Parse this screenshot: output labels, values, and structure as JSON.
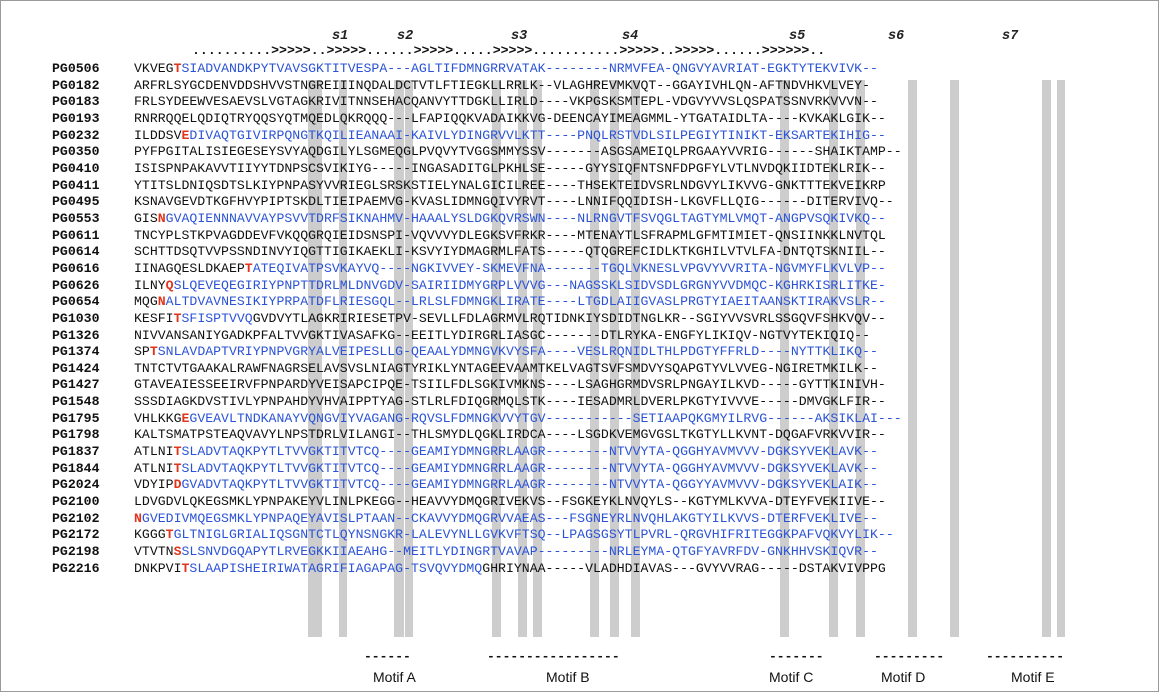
{
  "strands": [
    "s1",
    "s2",
    "s3",
    "s4",
    "s5",
    "s6",
    "s7"
  ],
  "ss_line": "..........>>>>>..>>>>>......>>>>>.....>>>>>...........>>>>>..>>>>>......>>>>>>..",
  "rows": [
    {
      "id": "PG0506",
      "segments": [
        [
          "k",
          "VKVEG"
        ],
        [
          "r",
          "T"
        ],
        [
          "b",
          "SIADVANDKPYTVAVSGKTITVESPA---AGLTIFDMNGRRVATAK--------NRMVFEA-QNGVYAVRIAT-EGKTYTEKVIVK--"
        ]
      ]
    },
    {
      "id": "PG0182",
      "segments": [
        [
          "k",
          "ARFRLSYGCDENVDDSHVVSTNGREIIINQDALDCTVTLFTIEGKLLRRLK--VLAGHREVMKVQT--GGAYIVHLQN-AFTNDVHKVLVEY-"
        ]
      ]
    },
    {
      "id": "PG0183",
      "segments": [
        [
          "k",
          "FRLSYDEEWVESAEVSLVGTAGKRIVITNNSEHACQANVYTTDGKLLIRLD----VKPGSKSMTEPL-VDGVYVVSLQSPATSSNVRKVVVN--"
        ]
      ]
    },
    {
      "id": "PG0193",
      "segments": [
        [
          "k",
          "RNRRQQELQDIQTRYQQSYQTMQEDLQKRQQQ---LFAPIQQKVADAIKKVG-DEENCAYIMEAGMML-YTGATAIDLTA----KVKAKLGIK--"
        ]
      ]
    },
    {
      "id": "PG0232",
      "segments": [
        [
          "k",
          "ILDDSV"
        ],
        [
          "r",
          "E"
        ],
        [
          "b",
          "DIVAQTGIVIRPQNGTKQILIEANAAI-KAIVLYDINGRVVLKTT----PNQLRSTVDLSILPEGIYTINIKT-EKSARTEKIHIG--"
        ]
      ]
    },
    {
      "id": "PG0350",
      "segments": [
        [
          "k",
          "PYFPGITALISIEGESEYSVYAQDGILYLSGMEQGLPVQVYTVGGSMMYSSV-------ASGSAMEIQLPRGAAYVVRIG------SHAIKTAMP--"
        ]
      ]
    },
    {
      "id": "PG0410",
      "segments": [
        [
          "k",
          "ISISPNPAKAVVTIIYYTDNPSCSVIKIYG-----INGASADITGLPKHLSE-----GYYSIQFNTSNFDPGFYLVTLNVDQKIIDTEKLRIK--"
        ]
      ]
    },
    {
      "id": "PG0411",
      "segments": [
        [
          "k",
          "YTITSLDNIQSDTSLKIYPNPASYVVRIEGLSRSKSTIELYNALGICILREE----THSEKTEIDVSRLNDGVYLIKVVG-GNKTTTEKVEIKRP"
        ]
      ]
    },
    {
      "id": "PG0495",
      "segments": [
        [
          "k",
          "KSNAVGEVDTKGFHVYPIPTSKDLTIEIPAEMVG-KVASLIDMNGQIVYRVT----LNNIFQQIDISH-LKGVFLLQIG------DITERVIVQ--"
        ]
      ]
    },
    {
      "id": "PG0553",
      "segments": [
        [
          "k",
          "GIS"
        ],
        [
          "r",
          "N"
        ],
        [
          "b",
          "GVAQIENNNAVVAYPSVVTDRFSIKNAHMV-HAAALYSLDGKQVRSWN----NLRNGVTFSVQGLTAGTYMLVMQT-ANGPVSQKIVKQ--"
        ]
      ]
    },
    {
      "id": "PG0611",
      "segments": [
        [
          "k",
          "TNCYPLSTKPVAGDDEVFVKQQGRQIEIDSNSPI-VQVVVYDLEGKSVFRKR----MTENAYTLSFRAPMLGFMTIMIET-QNSIINKKLNVTQL"
        ]
      ]
    },
    {
      "id": "PG0614",
      "segments": [
        [
          "k",
          "SCHTTDSQTVVPSSNDINVYIQGTTIGIKAEKLI-KSVYIYDMAGRMLFATS-----QTQGREFCIDLKTKGHILVTVLFA-DNTQTSKNIIL--"
        ]
      ]
    },
    {
      "id": "PG0616",
      "segments": [
        [
          "k",
          "IINAGQESLDKAEP"
        ],
        [
          "r",
          "T"
        ],
        [
          "b",
          "ATEQIVATPSVKAYVQ----NGKIVVEY-SKMEVFNA-------TGQLVKNESLVPGVYVVRITA-NGVMYFLKVLVP--"
        ]
      ]
    },
    {
      "id": "PG0626",
      "segments": [
        [
          "k",
          "ILNY"
        ],
        [
          "r",
          "Q"
        ],
        [
          "b",
          "SLQEVEQEGIRIYPNPTTDRLMLDNVGDV-SAIRIIDMYGRPLVVVG---NAGSSKLSIDVSDLGRGNYVVDMQC-KGHRKISRLITKE-"
        ]
      ]
    },
    {
      "id": "PG0654",
      "segments": [
        [
          "k",
          "MQG"
        ],
        [
          "r",
          "N"
        ],
        [
          "b",
          "ALTDVAVNESIKIYPRPATDFLRIESGQL--LRLSLFDMNGKLIRATE----LTGDLAIIGVASLPRGTYIAEITAANSKTIRAKVSLR--"
        ]
      ]
    },
    {
      "id": "PG1030",
      "segments": [
        [
          "k",
          "KESFI"
        ],
        [
          "r",
          "T"
        ],
        [
          "b",
          "SFISPTVVQ"
        ],
        [
          "k",
          "GVDVYTLAGKRIRIESETPV-SEVLLFDLAGRMVLRQTIDNKIYSDIDTNGLKR--SGIYVVSVRLSSGQVFSHKVQV--"
        ]
      ]
    },
    {
      "id": "PG1326",
      "segments": [
        [
          "k",
          "NIVVANSANIYGADKPFALTVVGKTIVASAFKG--EEITLYDIRGRLIASGC-------DTLRYKA-ENGFYLIKIQV-NGTVYTEKIQIQ--"
        ]
      ]
    },
    {
      "id": "PG1374",
      "segments": [
        [
          "k",
          "SP"
        ],
        [
          "r",
          "T"
        ],
        [
          "b",
          "SNLAVDAPTVRIYPNPVGRYALVEIPESLLG-QEAALYDMNGVKVYSFA----VESLRQNIDLTHLPDGTYFFRLD----NYTTKLIKQ--"
        ]
      ]
    },
    {
      "id": "PG1424",
      "segments": [
        [
          "k",
          "TNTCTVTGAAKALRAWFNAGRSELAVSVSLNIAGTYRIKLYNTAGEEVAAMTKELVAGTSVFSMDVYSQAPGTYVLVVEG-NGIRETMKILK--"
        ]
      ]
    },
    {
      "id": "PG1427",
      "segments": [
        [
          "k",
          "GTAVEAIESSEEIRVFPNPARDYVEISAPCIPQE-TSIILFDLSGKIVMKNS----LSAGHGRMDVSRLPNGAYILKVD-----GYTTKINIVH-"
        ]
      ]
    },
    {
      "id": "PG1548",
      "segments": [
        [
          "k",
          "SSSDIAGKDVSTIVLYPNPAHDYVHVAIPPTYAG-STLRLFDIQGRMQLSTK----IESADMRLDVERLPKGTYIVVVE-----DMVGKLFIR--"
        ]
      ]
    },
    {
      "id": "PG1795",
      "segments": [
        [
          "k",
          "VHLKKG"
        ],
        [
          "r",
          "E"
        ],
        [
          "b",
          "GVEAVLTNDKANAYVQNGVIYVAGANG-RQVSLFDMNGKVVYTGV-----------SETIAAPQKGMYILRVG------AKSIKLAI---"
        ]
      ]
    },
    {
      "id": "PG1798",
      "segments": [
        [
          "k",
          "KALTSMATPSTEAQVAVYLNPSTDRLVILANGI--THLSMYDLQGKLIRDCA----LSGDKVEMGVGSLTKGTYLLKVNT-DQGAFVRKVVIR--"
        ]
      ]
    },
    {
      "id": "PG1837",
      "segments": [
        [
          "k",
          "ATLNI"
        ],
        [
          "r",
          "T"
        ],
        [
          "b",
          "SLADVTAQKPYTLTVVGKTITVTCQ----GEAMIYDMNGRRLAAGR--------NTVVYTA-QGGHYAVMVVV-DGKSYVEKLAVK--"
        ]
      ]
    },
    {
      "id": "PG1844",
      "segments": [
        [
          "k",
          "ATLNI"
        ],
        [
          "r",
          "T"
        ],
        [
          "b",
          "SLADVTAQKPYTLTVVGKTITVTCQ----GEAMIYDMNGRRLAAGR--------NTVVYTA-QGGHYAVMVVV-DGKSYVEKLAVK--"
        ]
      ]
    },
    {
      "id": "PG2024",
      "segments": [
        [
          "k",
          "VDYIP"
        ],
        [
          "r",
          "D"
        ],
        [
          "b",
          "GVADVTAQKPYTLTVVGKTITVTCQ----GEAMIYDMNGRRLAAGR--------NTVVYTA-QGGYYAVMVVV-DGKSYVEKLAIK--"
        ]
      ]
    },
    {
      "id": "PG2100",
      "segments": [
        [
          "k",
          "LDVGDVLQKEGSMKLYPNPAKEYVLINLPKEGG--HEAVVYDMQGRIVEKVS--FSGKEYKLNVQYLS--KGTYMLKVVA-DTEYFVEKIIVE--"
        ]
      ]
    },
    {
      "id": "PG2102",
      "segments": [
        [
          "r",
          "N"
        ],
        [
          "b",
          "GVEDIVMQEGSMKLYPNPAQEYAVISLPTAAN--CKAVVYDMQGRVVAEAS---FSGNEYRLNVQHLAKGTYILKVVS-DTERFVEKLIVE--"
        ]
      ]
    },
    {
      "id": "PG2172",
      "segments": [
        [
          "k",
          "KGGG"
        ],
        [
          "r",
          "T"
        ],
        [
          "b",
          "GLTNIGLGRIALIQSGNTCTLQYNSNGKR-LALEVYNLLGVKVFTSQ--LPAGSGSYTLPVRL-QRGVHIFRITEGGKPAFVQKVYLIK--"
        ]
      ]
    },
    {
      "id": "PG2198",
      "segments": [
        [
          "k",
          "VTVTN"
        ],
        [
          "r",
          "S"
        ],
        [
          "b",
          "SLSNVDGQAPYTLRVEGKKIIAEAHG--MEITLYDINGRTVAVAP---------NRLEYMA-QTGFYAVRFDV-GNKHHVSKIQVR--"
        ]
      ]
    },
    {
      "id": "PG2216",
      "segments": [
        [
          "k",
          "DNKPVI"
        ],
        [
          "r",
          "T"
        ],
        [
          "b",
          "SLAAPISHEIRIWATAGRIFIAGAPAG-TSVQVYDMQ"
        ],
        [
          "k",
          "GHRIYNAA-----VLADHDIAVAS---GVYVVRAG-----DSTAKVIVPPG"
        ]
      ]
    }
  ],
  "motifs": [
    {
      "label": "Motif A",
      "dash": "------"
    },
    {
      "label": "Motif B",
      "dash": "-----------------"
    },
    {
      "label": "Motif C",
      "dash": "-------"
    },
    {
      "label": "Motif D",
      "dash": "---------"
    },
    {
      "label": "Motif E",
      "dash": "----------"
    }
  ]
}
